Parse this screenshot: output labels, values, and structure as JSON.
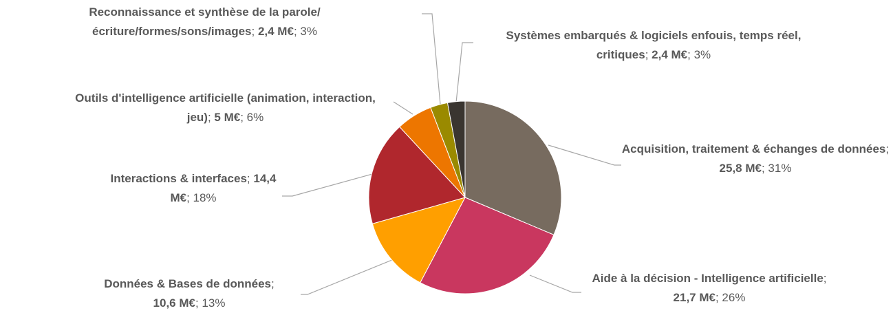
{
  "chart_data": {
    "type": "pie",
    "categories": [
      "Acquisition, traitement & échanges de données",
      "Aide à la décision - Intelligence artificielle",
      "Données & Bases de données",
      "Interactions & interfaces",
      "Outils d'intelligence artificielle (animation, interaction, jeu)",
      "Reconnaissance et synthèse de la parole/écriture/formes/sons/images",
      "Systèmes embarqués & logiciels enfouis, temps réel, critiques"
    ],
    "values": [
      25.8,
      21.7,
      10.6,
      14.4,
      5,
      2.4,
      2.4
    ],
    "value_labels": [
      "25,8 M€",
      "21,7 M€",
      "10,6 M€",
      "14,4 M€",
      "5 M€",
      "2,4 M€",
      "2,4 M€"
    ],
    "shares": [
      31,
      26,
      13,
      18,
      6,
      3,
      3
    ],
    "share_labels": [
      "31%",
      "26%",
      "13%",
      "18%",
      "6%",
      "3%",
      "3%"
    ],
    "separator": "; ",
    "colors": [
      "#776b5f",
      "#c9375f",
      "#ff9f00",
      "#b0272d",
      "#ed7600",
      "#9a8a00",
      "#3a3530"
    ]
  }
}
